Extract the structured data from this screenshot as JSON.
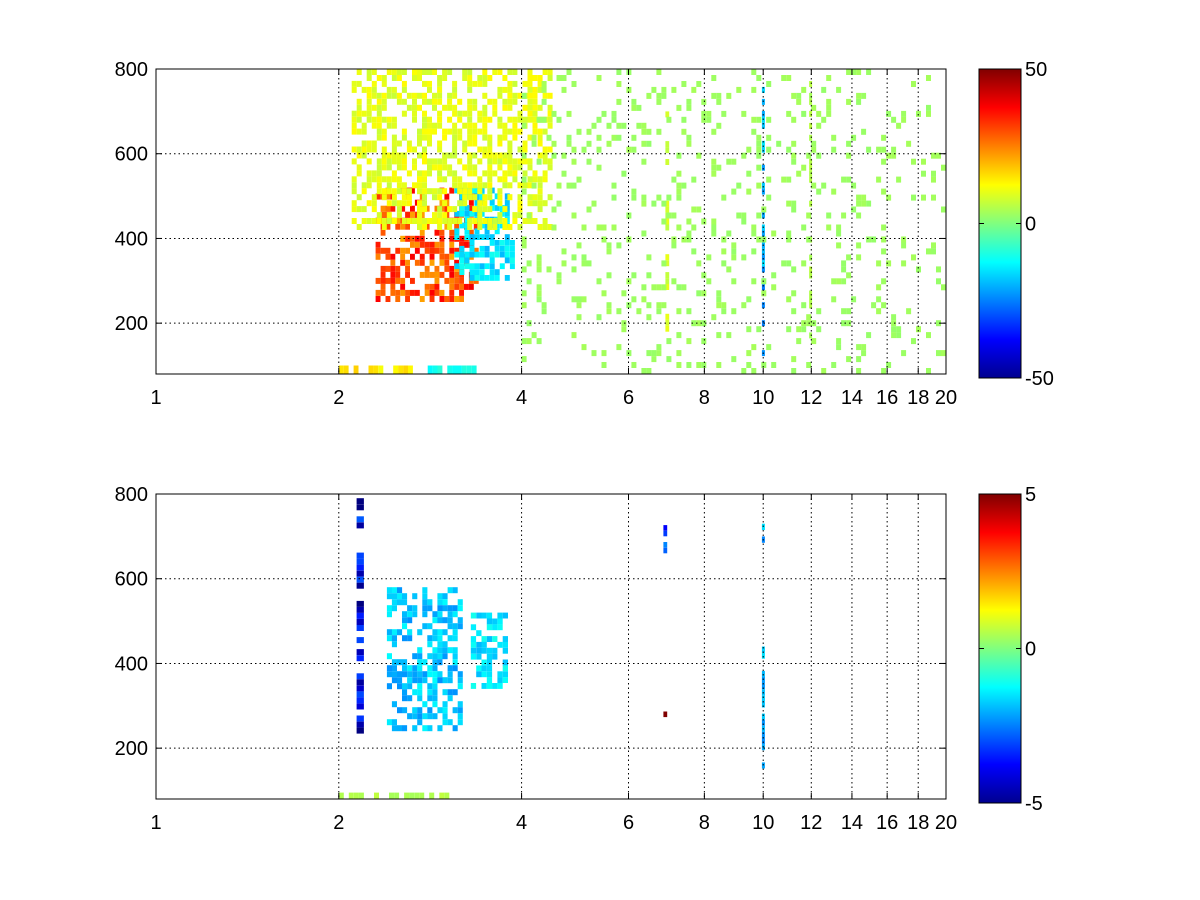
{
  "chart_data": [
    {
      "type": "heatmap",
      "title": "",
      "xlabel": "",
      "ylabel": "",
      "xscale": "log",
      "xlim": [
        1,
        20
      ],
      "ylim": [
        80,
        800
      ],
      "xticks": [
        1,
        2,
        4,
        6,
        8,
        10,
        12,
        14,
        16,
        18,
        20
      ],
      "xtick_labels": [
        "1",
        "2",
        "4",
        "6",
        "8",
        "10",
        "12",
        "14",
        "16",
        "18",
        "20"
      ],
      "yticks": [
        200,
        400,
        600,
        800
      ],
      "ytick_labels": [
        "200",
        "400",
        "600",
        "800"
      ],
      "grid": true,
      "colormap": "jet",
      "clim": [
        -50,
        50
      ],
      "colorbar_ticks": [
        -50,
        0,
        50
      ],
      "colorbar_labels": [
        "-50",
        "0",
        "50"
      ],
      "features": [
        {
          "x": [
            2.3,
            3.4
          ],
          "y": [
            250,
            520
          ],
          "value": 30
        },
        {
          "x": [
            3.1,
            3.9
          ],
          "y": [
            300,
            520
          ],
          "value": -15
        },
        {
          "x": [
            2.1,
            4.5
          ],
          "y": [
            420,
            800
          ],
          "value": 10
        },
        {
          "x": [
            2.0,
            2.7
          ],
          "y": [
            80,
            100
          ],
          "value": 15
        },
        {
          "x": [
            2.7,
            3.5
          ],
          "y": [
            80,
            100
          ],
          "value": -12
        },
        {
          "x": [
            9.95,
            10.05
          ],
          "y": [
            80,
            800
          ],
          "value": -20
        },
        {
          "x": [
            6.9,
            7.0
          ],
          "y": [
            180,
            700
          ],
          "value": 8
        },
        {
          "x": [
            11.9,
            12.0
          ],
          "y": [
            150,
            800
          ],
          "value": 5
        },
        {
          "x": [
            4.0,
            20.0
          ],
          "y": [
            80,
            800
          ],
          "value": 3
        }
      ]
    },
    {
      "type": "heatmap",
      "title": "",
      "xlabel": "",
      "ylabel": "",
      "xscale": "log",
      "xlim": [
        1,
        20
      ],
      "ylim": [
        80,
        800
      ],
      "xticks": [
        1,
        2,
        4,
        6,
        8,
        10,
        12,
        14,
        16,
        18,
        20
      ],
      "xtick_labels": [
        "1",
        "2",
        "4",
        "6",
        "8",
        "10",
        "12",
        "14",
        "16",
        "18",
        "20"
      ],
      "yticks": [
        200,
        400,
        600,
        800
      ],
      "ytick_labels": [
        "200",
        "400",
        "600",
        "800"
      ],
      "grid": true,
      "colormap": "jet",
      "clim": [
        -5,
        5
      ],
      "colorbar_ticks": [
        -5,
        0,
        5
      ],
      "colorbar_labels": [
        "-5",
        "0",
        "5"
      ],
      "features": [
        {
          "x": [
            2.4,
            3.2
          ],
          "y": [
            240,
            580
          ],
          "value": -1.8
        },
        {
          "x": [
            3.3,
            3.8
          ],
          "y": [
            340,
            520
          ],
          "value": -1.5
        },
        {
          "x": [
            2.0,
            3.1
          ],
          "y": [
            80,
            95
          ],
          "value": 0.5
        },
        {
          "x": [
            2.14,
            2.2
          ],
          "y": [
            220,
            790
          ],
          "value": -4
        },
        {
          "x": [
            6.85,
            6.95
          ],
          "y": [
            660,
            740
          ],
          "value": -3
        },
        {
          "x": [
            6.85,
            6.95
          ],
          "y": [
            260,
            300
          ],
          "value": 4
        },
        {
          "x": [
            9.95,
            10.05
          ],
          "y": [
            80,
            440
          ],
          "value": -2
        },
        {
          "x": [
            9.95,
            10.05
          ],
          "y": [
            670,
            730
          ],
          "value": -2
        }
      ]
    }
  ]
}
